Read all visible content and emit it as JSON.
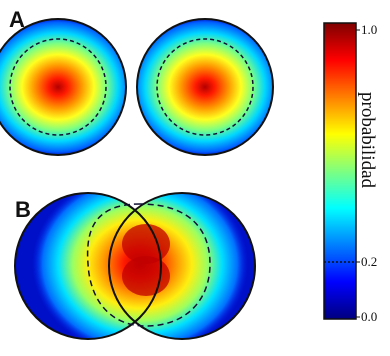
{
  "panels": [
    {
      "letter": "A"
    },
    {
      "letter": "B"
    }
  ],
  "colorbar": {
    "title": "probabilidad",
    "ticks": [
      "1.0",
      "0.2",
      "0.0"
    ],
    "tick_values": [
      1.0,
      0.2,
      0.0
    ],
    "dotted_threshold": 0.2,
    "colormap": [
      "#00007f",
      "#0000ff",
      "#007fff",
      "#00ffff",
      "#7fff7f",
      "#ffff00",
      "#ff7f00",
      "#ff0000",
      "#7f0000"
    ]
  }
}
